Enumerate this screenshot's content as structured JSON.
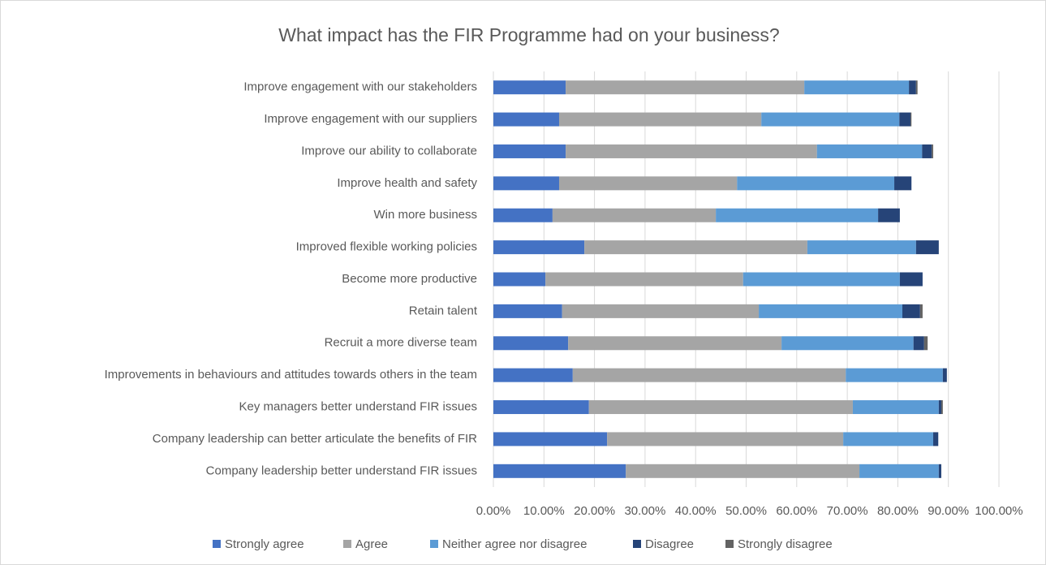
{
  "chart_data": {
    "type": "stacked-bar-horizontal",
    "title": "What impact has the FIR Programme had on your business?",
    "categories": [
      "Improve engagement with our stakeholders",
      "Improve engagement with our suppliers",
      "Improve our ability to collaborate",
      "Improve health and safety",
      "Win more business",
      "Improved flexible working policies",
      "Become more productive",
      "Retain talent",
      "Recruit a more diverse team",
      "Improvements in behaviours and attitudes towards others in the team",
      "Key managers better understand FIR issues",
      "Company leadership can better articulate the benefits of FIR",
      "Company leadership better understand FIR issues"
    ],
    "series": [
      {
        "name": "Strongly agree",
        "color": "#4472c4",
        "values": [
          14.3,
          13.0,
          14.3,
          13.0,
          11.7,
          18.0,
          10.3,
          13.6,
          14.8,
          15.7,
          18.9,
          22.5,
          26.2
        ]
      },
      {
        "name": "Agree",
        "color": "#a5a5a5",
        "values": [
          47.2,
          40.0,
          49.7,
          35.2,
          32.3,
          44.1,
          39.1,
          38.9,
          42.2,
          54.0,
          52.2,
          46.7,
          46.2
        ]
      },
      {
        "name": "Neither agree nor disagree",
        "color": "#5b9bd5",
        "values": [
          20.7,
          27.3,
          20.8,
          31.1,
          32.1,
          21.5,
          31.0,
          28.4,
          26.1,
          19.2,
          17.0,
          17.8,
          15.7
        ]
      },
      {
        "name": "Disagree",
        "color": "#264478",
        "values": [
          1.4,
          2.2,
          1.9,
          3.4,
          4.3,
          4.5,
          4.5,
          3.5,
          2.1,
          0.8,
          0.5,
          1.0,
          0.5
        ]
      },
      {
        "name": "Strongly disagree",
        "color": "#636363",
        "values": [
          0.3,
          0.2,
          0.3,
          0,
          0,
          0,
          0,
          0.5,
          0.7,
          0,
          0.3,
          0,
          0
        ]
      }
    ],
    "xlim": [
      0,
      100
    ],
    "xticks": [
      {
        "value": 0,
        "label": "0.00%"
      },
      {
        "value": 10,
        "label": "10.00%"
      },
      {
        "value": 20,
        "label": "20.00%"
      },
      {
        "value": 30,
        "label": "30.00%"
      },
      {
        "value": 40,
        "label": "40.00%"
      },
      {
        "value": 50,
        "label": "50.00%"
      },
      {
        "value": 60,
        "label": "60.00%"
      },
      {
        "value": 70,
        "label": "70.00%"
      },
      {
        "value": 80,
        "label": "80.00%"
      },
      {
        "value": 90,
        "label": "90.00%"
      },
      {
        "value": 100,
        "label": "100.00%"
      }
    ],
    "grid": true,
    "legend": "bottom"
  }
}
